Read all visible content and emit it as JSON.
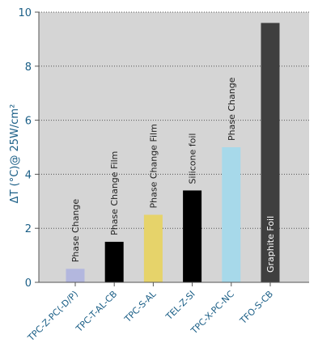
{
  "chart_data": {
    "type": "bar",
    "title": "",
    "xlabel": "",
    "ylabel": "ΔT (°C)@ 25W/cm²",
    "ylim": [
      0,
      10
    ],
    "yticks": [
      0,
      2,
      4,
      6,
      8,
      10
    ],
    "grid": "horizontal-dotted",
    "categories": [
      "TPC-Z-PC(-D/P)",
      "TPC-T-AL-CB",
      "TPC-S-AL",
      "TEL-Z-SI",
      "TPC-X-PC-NC",
      "TFO-S-CB"
    ],
    "values": [
      0.5,
      1.5,
      2.5,
      3.4,
      5.0,
      9.6
    ],
    "bar_labels": [
      "Phase Change",
      "Phase Change Film",
      "Phase Change Film",
      "Silicone foil",
      "Phase Change",
      "Graphite Foil"
    ],
    "colors": [
      "#b3b7de",
      "#000000",
      "#e6d36a",
      "#000000",
      "#a7d9ea",
      "#3f3f3f"
    ]
  }
}
